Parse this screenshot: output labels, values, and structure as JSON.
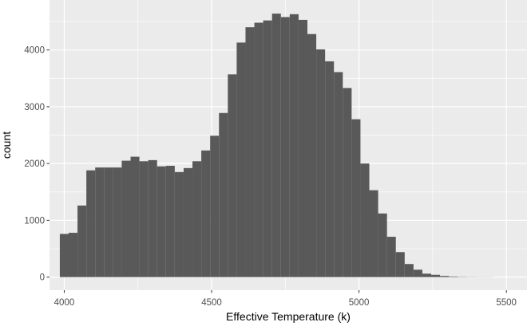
{
  "chart_data": {
    "type": "bar",
    "subtype": "histogram",
    "xlabel": "Effective Temperature (k)",
    "ylabel": "count",
    "xlim": [
      3950,
      5570
    ],
    "ylim": [
      -230,
      4880
    ],
    "x_ticks": [
      4000,
      4500,
      5000,
      5500
    ],
    "y_ticks": [
      0,
      1000,
      2000,
      3000,
      4000
    ],
    "grid": true,
    "bin_width": 30,
    "bins_start": 3985,
    "values": [
      760,
      780,
      1260,
      1880,
      1930,
      1930,
      1930,
      2050,
      2120,
      2040,
      2060,
      1950,
      1960,
      1850,
      1920,
      2040,
      2230,
      2490,
      2890,
      3570,
      4130,
      4400,
      4480,
      4520,
      4640,
      4580,
      4630,
      4530,
      4280,
      4010,
      3800,
      3610,
      3330,
      2780,
      2000,
      1530,
      1120,
      710,
      440,
      230,
      130,
      60,
      40,
      20,
      10,
      5,
      3,
      2,
      2
    ]
  },
  "colors": {
    "panel_background": "#ebebeb",
    "grid_major": "#ffffff",
    "bar_fill": "#595959",
    "tick_text": "#4d4d4d",
    "tick_mark": "#333333"
  }
}
